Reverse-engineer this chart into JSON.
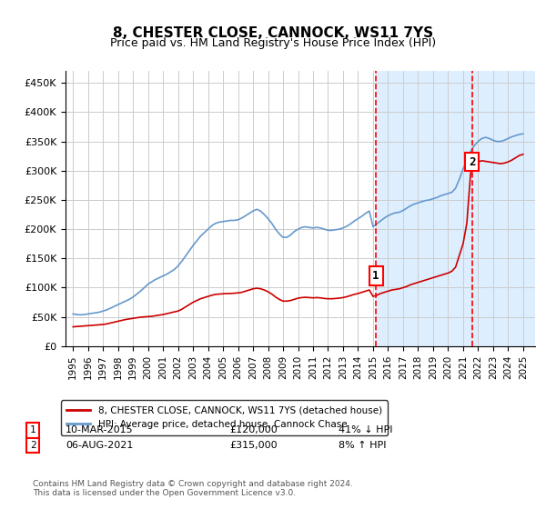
{
  "title": "8, CHESTER CLOSE, CANNOCK, WS11 7YS",
  "subtitle": "Price paid vs. HM Land Registry's House Price Index (HPI)",
  "background_shaded": true,
  "shaded_x_start": 2015.2,
  "shaded_x_end": 2025.5,
  "ylim": [
    0,
    470000
  ],
  "xlim": [
    1994.5,
    2025.8
  ],
  "yticks": [
    0,
    50000,
    100000,
    150000,
    200000,
    250000,
    300000,
    350000,
    400000,
    450000
  ],
  "ytick_labels": [
    "£0",
    "£50K",
    "£100K",
    "£150K",
    "£200K",
    "£250K",
    "£300K",
    "£350K",
    "£400K",
    "£450K"
  ],
  "xticks": [
    1995,
    1996,
    1997,
    1998,
    1999,
    2000,
    2001,
    2002,
    2003,
    2004,
    2005,
    2006,
    2007,
    2008,
    2009,
    2010,
    2011,
    2012,
    2013,
    2014,
    2015,
    2016,
    2017,
    2018,
    2019,
    2020,
    2021,
    2022,
    2023,
    2024,
    2025
  ],
  "marker1_x": 2015.19,
  "marker1_y": 120000,
  "marker1_label": "1",
  "marker1_date": "10-MAR-2015",
  "marker1_price": "£120,000",
  "marker1_hpi": "41% ↓ HPI",
  "marker2_x": 2021.59,
  "marker2_y": 315000,
  "marker2_label": "2",
  "marker2_date": "06-AUG-2021",
  "marker2_price": "£315,000",
  "marker2_hpi": "8% ↑ HPI",
  "legend_line1": "8, CHESTER CLOSE, CANNOCK, WS11 7YS (detached house)",
  "legend_line2": "HPI: Average price, detached house, Cannock Chase",
  "footer": "Contains HM Land Registry data © Crown copyright and database right 2024.\nThis data is licensed under the Open Government Licence v3.0.",
  "line_color_red": "#cc0000",
  "line_color_blue": "#6699cc",
  "shaded_color": "#ddeeff",
  "grid_color": "#cccccc",
  "hpi_data_x": [
    1995.0,
    1995.25,
    1995.5,
    1995.75,
    1996.0,
    1996.25,
    1996.5,
    1996.75,
    1997.0,
    1997.25,
    1997.5,
    1997.75,
    1998.0,
    1998.25,
    1998.5,
    1998.75,
    1999.0,
    1999.25,
    1999.5,
    1999.75,
    2000.0,
    2000.25,
    2000.5,
    2000.75,
    2001.0,
    2001.25,
    2001.5,
    2001.75,
    2002.0,
    2002.25,
    2002.5,
    2002.75,
    2003.0,
    2003.25,
    2003.5,
    2003.75,
    2004.0,
    2004.25,
    2004.5,
    2004.75,
    2005.0,
    2005.25,
    2005.5,
    2005.75,
    2006.0,
    2006.25,
    2006.5,
    2006.75,
    2007.0,
    2007.25,
    2007.5,
    2007.75,
    2008.0,
    2008.25,
    2008.5,
    2008.75,
    2009.0,
    2009.25,
    2009.5,
    2009.75,
    2010.0,
    2010.25,
    2010.5,
    2010.75,
    2011.0,
    2011.25,
    2011.5,
    2011.75,
    2012.0,
    2012.25,
    2012.5,
    2012.75,
    2013.0,
    2013.25,
    2013.5,
    2013.75,
    2014.0,
    2014.25,
    2014.5,
    2014.75,
    2015.0,
    2015.25,
    2015.5,
    2015.75,
    2016.0,
    2016.25,
    2016.5,
    2016.75,
    2017.0,
    2017.25,
    2017.5,
    2017.75,
    2018.0,
    2018.25,
    2018.5,
    2018.75,
    2019.0,
    2019.25,
    2019.5,
    2019.75,
    2020.0,
    2020.25,
    2020.5,
    2020.75,
    2021.0,
    2021.25,
    2021.5,
    2021.75,
    2022.0,
    2022.25,
    2022.5,
    2022.75,
    2023.0,
    2023.25,
    2023.5,
    2023.75,
    2024.0,
    2024.25,
    2024.5,
    2024.75,
    2025.0
  ],
  "hpi_data_y": [
    55000,
    54000,
    53500,
    54000,
    55000,
    56000,
    57000,
    58000,
    60000,
    62000,
    65000,
    68000,
    71000,
    74000,
    77000,
    80000,
    84000,
    89000,
    94000,
    100000,
    106000,
    110000,
    114000,
    117000,
    120000,
    123000,
    127000,
    131000,
    137000,
    145000,
    154000,
    163000,
    172000,
    180000,
    188000,
    194000,
    200000,
    206000,
    210000,
    212000,
    213000,
    214000,
    215000,
    215000,
    216000,
    219000,
    223000,
    227000,
    231000,
    234000,
    231000,
    225000,
    218000,
    210000,
    200000,
    192000,
    186000,
    186000,
    190000,
    196000,
    200000,
    203000,
    204000,
    203000,
    202000,
    203000,
    202000,
    200000,
    198000,
    198000,
    199000,
    200000,
    202000,
    205000,
    209000,
    214000,
    218000,
    222000,
    227000,
    231000,
    204000,
    209000,
    214000,
    219000,
    223000,
    226000,
    228000,
    229000,
    232000,
    236000,
    240000,
    243000,
    245000,
    247000,
    249000,
    250000,
    252000,
    254000,
    257000,
    259000,
    261000,
    263000,
    270000,
    285000,
    303000,
    318000,
    333000,
    343000,
    350000,
    355000,
    357000,
    355000,
    352000,
    350000,
    350000,
    352000,
    355000,
    358000,
    360000,
    362000,
    363000
  ],
  "red_data_x": [
    1995.0,
    1995.25,
    1995.5,
    1995.75,
    1996.0,
    1996.25,
    1996.5,
    1996.75,
    1997.0,
    1997.25,
    1997.5,
    1997.75,
    1998.0,
    1998.25,
    1998.5,
    1998.75,
    1999.0,
    1999.25,
    1999.5,
    1999.75,
    2000.0,
    2000.25,
    2000.5,
    2000.75,
    2001.0,
    2001.25,
    2001.5,
    2001.75,
    2002.0,
    2002.25,
    2002.5,
    2002.75,
    2003.0,
    2003.25,
    2003.5,
    2003.75,
    2004.0,
    2004.25,
    2004.5,
    2004.75,
    2005.0,
    2005.25,
    2005.5,
    2005.75,
    2006.0,
    2006.25,
    2006.5,
    2006.75,
    2007.0,
    2007.25,
    2007.5,
    2007.75,
    2008.0,
    2008.25,
    2008.5,
    2008.75,
    2009.0,
    2009.25,
    2009.5,
    2009.75,
    2010.0,
    2010.25,
    2010.5,
    2010.75,
    2011.0,
    2011.25,
    2011.5,
    2011.75,
    2012.0,
    2012.25,
    2012.5,
    2012.75,
    2013.0,
    2013.25,
    2013.5,
    2013.75,
    2014.0,
    2014.25,
    2014.5,
    2014.75,
    2015.0,
    2015.25,
    2015.5,
    2015.75,
    2016.0,
    2016.25,
    2016.5,
    2016.75,
    2017.0,
    2017.25,
    2017.5,
    2017.75,
    2018.0,
    2018.25,
    2018.5,
    2018.75,
    2019.0,
    2019.25,
    2019.5,
    2019.75,
    2020.0,
    2020.25,
    2020.5,
    2020.75,
    2021.0,
    2021.25,
    2021.5,
    2021.75,
    2022.0,
    2022.25,
    2022.5,
    2022.75,
    2023.0,
    2023.25,
    2023.5,
    2023.75,
    2024.0,
    2024.25,
    2024.5,
    2024.75,
    2025.0
  ],
  "red_data_y": [
    33000,
    33500,
    34000,
    34500,
    35000,
    35500,
    36000,
    36500,
    37000,
    38000,
    39500,
    41000,
    42500,
    44000,
    45500,
    46500,
    47500,
    48500,
    49500,
    50000,
    50500,
    51000,
    52000,
    53000,
    54000,
    55500,
    57000,
    58500,
    60000,
    63000,
    67000,
    71000,
    75000,
    78000,
    81000,
    83000,
    85000,
    87000,
    88500,
    89000,
    89500,
    90000,
    90000,
    90500,
    91000,
    92000,
    94000,
    96000,
    98000,
    99000,
    98000,
    96000,
    93000,
    89000,
    84000,
    80000,
    77000,
    77000,
    78000,
    80000,
    82000,
    83000,
    83500,
    83000,
    82500,
    83000,
    82500,
    81500,
    81000,
    81000,
    81500,
    82000,
    83000,
    84500,
    86500,
    88500,
    90000,
    92000,
    94000,
    96000,
    85000,
    87000,
    90000,
    92000,
    94000,
    96000,
    97000,
    98000,
    100000,
    102000,
    105000,
    107000,
    109000,
    111000,
    113000,
    115000,
    117000,
    119000,
    121000,
    123000,
    125000,
    128000,
    135000,
    155000,
    175000,
    210000,
    295000,
    315000,
    315000,
    317000,
    316000,
    315000,
    314000,
    313000,
    312000,
    313000,
    315000,
    318000,
    322000,
    326000,
    328000
  ]
}
